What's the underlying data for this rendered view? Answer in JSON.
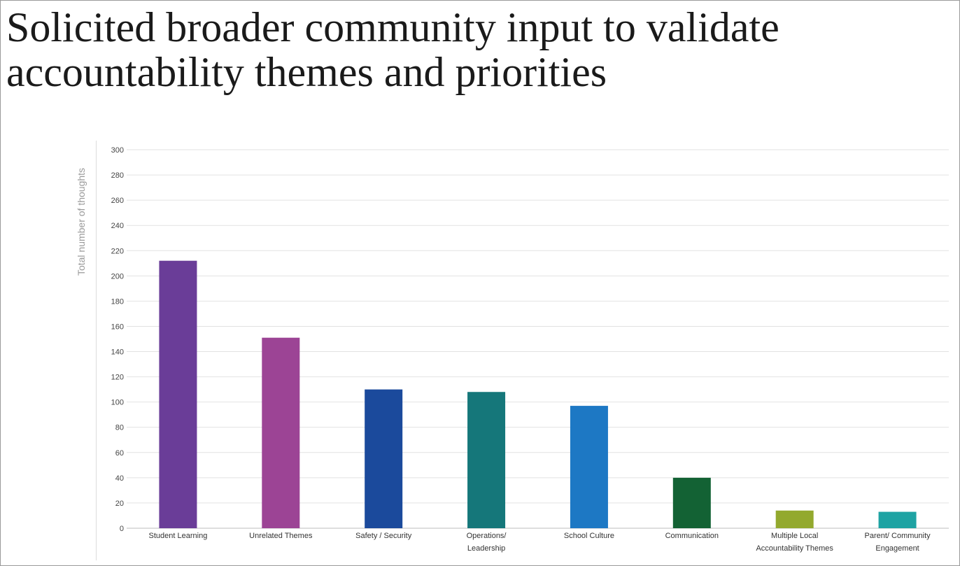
{
  "slide": {
    "title_line1": "Solicited broader community input to validate",
    "title_line2": "accountability themes and priorities"
  },
  "chart_data": {
    "type": "bar",
    "ylabel": "Total number of thoughts",
    "ylim": [
      0,
      300
    ],
    "yticks": [
      0,
      20,
      40,
      60,
      80,
      100,
      120,
      140,
      160,
      180,
      200,
      220,
      240,
      260,
      280,
      300
    ],
    "grid": true,
    "categories": [
      [
        "Student Learning"
      ],
      [
        "Unrelated Themes"
      ],
      [
        "Safety / Security"
      ],
      [
        "Operations/",
        "Leadership"
      ],
      [
        "School Culture"
      ],
      [
        "Communication"
      ],
      [
        "Multiple Local",
        "Accountability Themes"
      ],
      [
        "Parent/ Community",
        "Engagement"
      ]
    ],
    "values": [
      212,
      151,
      110,
      108,
      97,
      40,
      14,
      13
    ],
    "colors": [
      "#6a3d98",
      "#9c4495",
      "#1b4a9c",
      "#15777a",
      "#1d78c4",
      "#136234",
      "#93a92e",
      "#1ea3a3"
    ]
  }
}
